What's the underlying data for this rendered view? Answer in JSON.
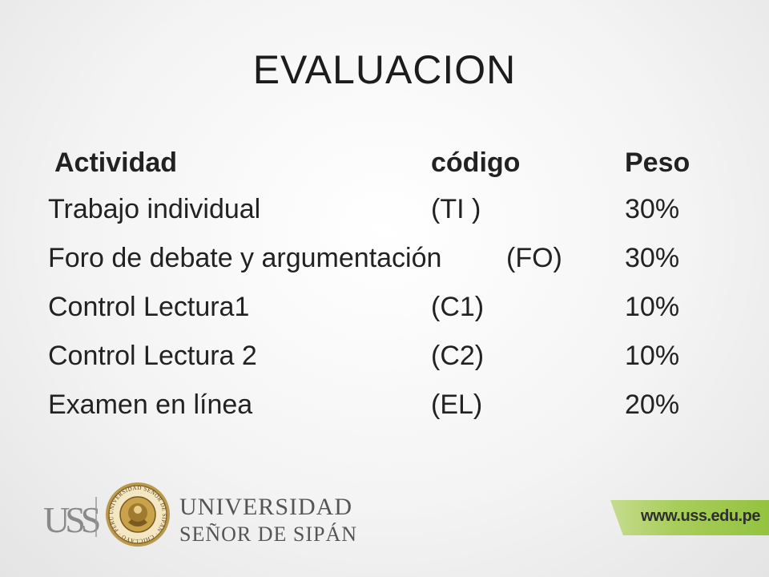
{
  "slide": {
    "title": "EVALUACION"
  },
  "table": {
    "headers": [
      "Actividad",
      "código",
      "Peso"
    ],
    "rows": [
      [
        "Trabajo individual",
        "(TI )",
        "30%"
      ],
      [
        "Foro de debate y argumentación",
        "(FO)",
        "30%"
      ],
      [
        "Control Lectura1",
        "(C1)",
        "10%"
      ],
      [
        "Control Lectura 2",
        "(C2)",
        "10%"
      ],
      [
        "Examen en línea",
        "(EL)",
        "20%"
      ]
    ]
  },
  "footer": {
    "logo_text": "USS",
    "university_line1": "UNIVERSIDAD",
    "university_line2": "SEÑOR DE SIPÁN",
    "seal_text": "UNIVERSIDAD SEÑOR DE SIPÁN · CHICLAYO · PERÚ",
    "website": "www.uss.edu.pe",
    "accent_color": "#9cc84a"
  }
}
